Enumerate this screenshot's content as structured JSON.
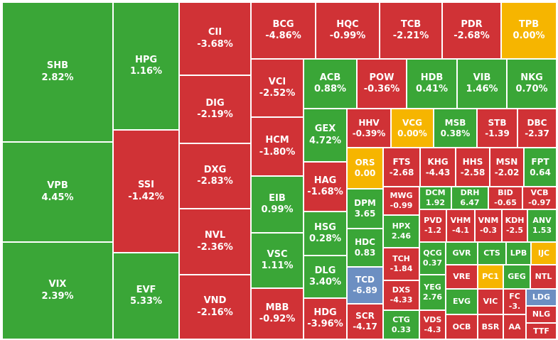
{
  "colors": {
    "up": "#3aa637",
    "down": "#d03236",
    "flat": "#f6b500",
    "floor": "#6c8fc2"
  },
  "chart_data": {
    "type": "heatmap",
    "tiles": [
      {
        "symbol": "SHB",
        "change": "2.82%",
        "status": "up"
      },
      {
        "symbol": "VPB",
        "change": "4.45%",
        "status": "up"
      },
      {
        "symbol": "VIX",
        "change": "2.39%",
        "status": "up"
      },
      {
        "symbol": "HPG",
        "change": "1.16%",
        "status": "up"
      },
      {
        "symbol": "SSI",
        "change": "-1.42%",
        "status": "down"
      },
      {
        "symbol": "EVF",
        "change": "5.33%",
        "status": "up"
      },
      {
        "symbol": "CII",
        "change": "-3.68%",
        "status": "down"
      },
      {
        "symbol": "DIG",
        "change": "-2.19%",
        "status": "down"
      },
      {
        "symbol": "DXG",
        "change": "-2.83%",
        "status": "down"
      },
      {
        "symbol": "NVL",
        "change": "-2.36%",
        "status": "down"
      },
      {
        "symbol": "VND",
        "change": "-2.16%",
        "status": "down"
      },
      {
        "symbol": "BCG",
        "change": "-4.86%",
        "status": "down"
      },
      {
        "symbol": "HQC",
        "change": "-0.99%",
        "status": "down"
      },
      {
        "symbol": "TCB",
        "change": "-2.21%",
        "status": "down"
      },
      {
        "symbol": "PDR",
        "change": "-2.68%",
        "status": "down"
      },
      {
        "symbol": "TPB",
        "change": "0.00%",
        "status": "flat"
      },
      {
        "symbol": "VCI",
        "change": "-2.52%",
        "status": "down"
      },
      {
        "symbol": "HCM",
        "change": "-1.80%",
        "status": "down"
      },
      {
        "symbol": "EIB",
        "change": "0.99%",
        "status": "up"
      },
      {
        "symbol": "VSC",
        "change": "1.11%",
        "status": "up"
      },
      {
        "symbol": "MBB",
        "change": "-0.92%",
        "status": "down"
      },
      {
        "symbol": "ACB",
        "change": "0.88%",
        "status": "up"
      },
      {
        "symbol": "POW",
        "change": "-0.36%",
        "status": "down"
      },
      {
        "symbol": "HDB",
        "change": "0.41%",
        "status": "up"
      },
      {
        "symbol": "VIB",
        "change": "1.46%",
        "status": "up"
      },
      {
        "symbol": "NKG",
        "change": "0.70%",
        "status": "up"
      },
      {
        "symbol": "GEX",
        "change": "4.72%",
        "status": "up"
      },
      {
        "symbol": "HAG",
        "change": "-1.68%",
        "status": "down"
      },
      {
        "symbol": "HSG",
        "change": "0.28%",
        "status": "up"
      },
      {
        "symbol": "DLG",
        "change": "3.40%",
        "status": "up"
      },
      {
        "symbol": "HDG",
        "change": "-3.96%",
        "status": "down"
      },
      {
        "symbol": "HHV",
        "change": "-0.39%",
        "status": "down"
      },
      {
        "symbol": "VCG",
        "change": "0.00%",
        "status": "flat"
      },
      {
        "symbol": "MSB",
        "change": "0.38%",
        "status": "up"
      },
      {
        "symbol": "STB",
        "change": "-1.39",
        "status": "down"
      },
      {
        "symbol": "DBC",
        "change": "-2.37",
        "status": "down"
      },
      {
        "symbol": "ORS",
        "change": "0.00",
        "status": "flat"
      },
      {
        "symbol": "FTS",
        "change": "-2.68",
        "status": "down"
      },
      {
        "symbol": "KHG",
        "change": "-4.43",
        "status": "down"
      },
      {
        "symbol": "HHS",
        "change": "-2.58",
        "status": "down"
      },
      {
        "symbol": "MSN",
        "change": "-2.02",
        "status": "down"
      },
      {
        "symbol": "FPT",
        "change": "0.64",
        "status": "up"
      },
      {
        "symbol": "DPM",
        "change": "3.65",
        "status": "up"
      },
      {
        "symbol": "HDC",
        "change": "0.83",
        "status": "up"
      },
      {
        "symbol": "TCD",
        "change": "-6.89",
        "status": "floor"
      },
      {
        "symbol": "SCR",
        "change": "-4.17",
        "status": "down"
      },
      {
        "symbol": "MWG",
        "change": "-0.99",
        "status": "down"
      },
      {
        "symbol": "DCM",
        "change": "1.92",
        "status": "up"
      },
      {
        "symbol": "DRH",
        "change": "6.47",
        "status": "up"
      },
      {
        "symbol": "BID",
        "change": "-0.65",
        "status": "down"
      },
      {
        "symbol": "VCB",
        "change": "-0.97",
        "status": "down"
      },
      {
        "symbol": "HPX",
        "change": "2.46",
        "status": "up"
      },
      {
        "symbol": "PVD",
        "change": "-1.2",
        "status": "down"
      },
      {
        "symbol": "VHM",
        "change": "-4.1",
        "status": "down"
      },
      {
        "symbol": "VNM",
        "change": "-0.3",
        "status": "down"
      },
      {
        "symbol": "KDH",
        "change": "-2.5",
        "status": "down"
      },
      {
        "symbol": "ANV",
        "change": "1.53",
        "status": "up"
      },
      {
        "symbol": "TCH",
        "change": "-1.84",
        "status": "down"
      },
      {
        "symbol": "QCG",
        "change": "0.37",
        "status": "up"
      },
      {
        "symbol": "GVR",
        "change": "",
        "status": "up"
      },
      {
        "symbol": "CTS",
        "change": "",
        "status": "up"
      },
      {
        "symbol": "LPB",
        "change": "",
        "status": "up"
      },
      {
        "symbol": "IJC",
        "change": "",
        "status": "flat"
      },
      {
        "symbol": "DXS",
        "change": "-4.33",
        "status": "down"
      },
      {
        "symbol": "YEG",
        "change": "2.76",
        "status": "up"
      },
      {
        "symbol": "VRE",
        "change": "",
        "status": "down"
      },
      {
        "symbol": "PC1",
        "change": "",
        "status": "flat"
      },
      {
        "symbol": "GEG",
        "change": "",
        "status": "up"
      },
      {
        "symbol": "NTL",
        "change": "",
        "status": "down"
      },
      {
        "symbol": "EVG",
        "change": "",
        "status": "up"
      },
      {
        "symbol": "VIC",
        "change": "",
        "status": "down"
      },
      {
        "symbol": "FC",
        "change": "-3.",
        "status": "down"
      },
      {
        "symbol": "LDG",
        "change": "",
        "status": "floor"
      },
      {
        "symbol": "CTG",
        "change": "0.33",
        "status": "up"
      },
      {
        "symbol": "VDS",
        "change": "-4.3",
        "status": "down"
      },
      {
        "symbol": "OCB",
        "change": "",
        "status": "down"
      },
      {
        "symbol": "BSR",
        "change": "",
        "status": "down"
      },
      {
        "symbol": "AA",
        "change": "",
        "status": "down"
      },
      {
        "symbol": "NLG",
        "change": "",
        "status": "down"
      },
      {
        "symbol": "TTF",
        "change": "",
        "status": "down"
      }
    ]
  }
}
